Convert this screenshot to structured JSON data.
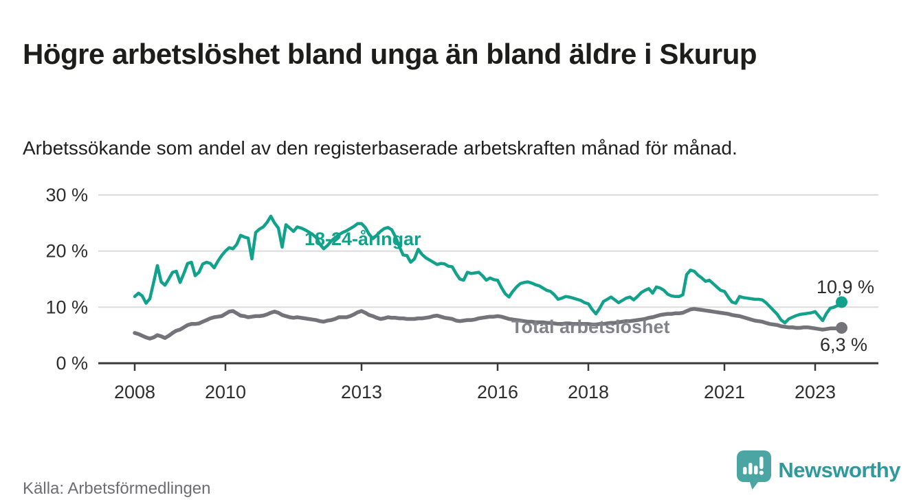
{
  "header": {
    "title": "Högre arbetslöshet bland unga än bland äldre i Skurup",
    "subtitle": "Arbetssökande som andel av den registerbaserade arbetskraften månad för månad."
  },
  "footer": {
    "source": "Källa: Arbetsförmedlingen",
    "brand": "Newsworthy"
  },
  "colors": {
    "youth": "#12A28B",
    "youth_label": "#12A28B",
    "total": "#74737A",
    "total_label": "#82828A",
    "axis": "#38383a",
    "gridline": "#dbdbdb",
    "logo": "#4BA5A3"
  },
  "chart_data": {
    "type": "line",
    "title": "Högre arbetslöshet bland unga än bland äldre i Skurup",
    "subtitle": "Arbetssökande som andel av den registerbaserade arbetskraften månad för månad.",
    "unit": "%",
    "x_start_year": 2008,
    "x_start_month": 1,
    "x_step_months": 1,
    "x_ticks": [
      2008,
      2010,
      2013,
      2016,
      2018,
      2021,
      2023
    ],
    "y_ticks": [
      {
        "value": 0,
        "label": "0 %"
      },
      {
        "value": 10,
        "label": "10 %"
      },
      {
        "value": 20,
        "label": "20 %"
      },
      {
        "value": 30,
        "label": "30 %"
      }
    ],
    "ylim": [
      0,
      30
    ],
    "grid": "horizontal",
    "legend_position": "inline-labels",
    "series": [
      {
        "name": "18-24-åringar",
        "color": "#12A28B",
        "end_label": "10,9 %",
        "end_value": 10.9,
        "values": [
          11.9,
          12.5,
          12.0,
          10.7,
          11.5,
          14.4,
          17.4,
          14.5,
          13.9,
          15.0,
          16.2,
          16.4,
          14.4,
          16.0,
          17.8,
          18.0,
          15.6,
          16.2,
          17.7,
          18.0,
          17.8,
          17.0,
          18.2,
          19.2,
          20.0,
          20.6,
          20.4,
          21.2,
          22.8,
          22.5,
          22.3,
          18.6,
          23.3,
          23.9,
          24.3,
          25.1,
          26.2,
          25.0,
          24.1,
          20.7,
          24.7,
          24.1,
          23.5,
          24.3,
          24.1,
          23.8,
          23.4,
          23.0,
          22.4,
          21.2,
          20.4,
          21.0,
          21.8,
          22.4,
          22.9,
          23.3,
          23.6,
          24.0,
          24.4,
          24.9,
          24.9,
          24.2,
          23.0,
          22.2,
          22.8,
          23.5,
          24.0,
          24.2,
          23.8,
          22.5,
          20.8,
          19.3,
          19.2,
          18.0,
          18.6,
          20.3,
          19.4,
          18.8,
          18.4,
          18.0,
          17.6,
          17.8,
          17.7,
          17.3,
          17.2,
          16.0,
          15.0,
          14.8,
          16.2,
          16.0,
          16.1,
          16.2,
          15.6,
          14.8,
          15.2,
          14.9,
          14.8,
          13.5,
          12.4,
          11.8,
          12.8,
          13.6,
          14.2,
          14.4,
          14.5,
          14.3,
          14.0,
          13.8,
          13.4,
          13.0,
          12.8,
          12.2,
          11.4,
          11.6,
          11.9,
          11.8,
          11.6,
          11.4,
          11.2,
          10.8,
          10.6,
          9.6,
          8.8,
          9.8,
          11.0,
          11.4,
          11.8,
          11.3,
          10.8,
          11.2,
          11.6,
          11.8,
          11.3,
          11.9,
          12.6,
          13.0,
          13.3,
          12.5,
          13.6,
          13.4,
          13.0,
          12.3,
          12.0,
          11.9,
          11.9,
          12.2,
          15.8,
          16.6,
          16.4,
          15.7,
          15.2,
          14.6,
          14.8,
          14.2,
          13.6,
          13.0,
          12.8,
          11.8,
          10.9,
          10.7,
          11.9,
          11.7,
          11.6,
          11.5,
          11.4,
          11.4,
          11.3,
          10.8,
          10.1,
          9.4,
          8.7,
          7.7,
          7.2,
          7.9,
          8.2,
          8.5,
          8.7,
          8.8,
          8.9,
          9.0,
          9.2,
          8.4,
          7.6,
          8.9,
          9.8,
          10.0,
          10.3,
          10.9
        ]
      },
      {
        "name": "Total arbetslöshet",
        "color": "#74737A",
        "end_label": "6,3 %",
        "end_value": 6.3,
        "values": [
          5.4,
          5.2,
          4.9,
          4.6,
          4.4,
          4.6,
          5.0,
          4.8,
          4.5,
          4.9,
          5.4,
          5.8,
          6.0,
          6.4,
          6.8,
          7.0,
          7.0,
          7.1,
          7.4,
          7.7,
          8.0,
          8.2,
          8.3,
          8.4,
          8.8,
          9.2,
          9.3,
          8.9,
          8.5,
          8.4,
          8.2,
          8.3,
          8.4,
          8.4,
          8.5,
          8.7,
          9.0,
          9.2,
          9.0,
          8.6,
          8.4,
          8.2,
          8.1,
          8.2,
          8.1,
          8.0,
          7.9,
          7.8,
          7.7,
          7.5,
          7.4,
          7.6,
          7.7,
          7.9,
          8.2,
          8.2,
          8.2,
          8.4,
          8.7,
          9.1,
          9.3,
          9.0,
          8.6,
          8.4,
          8.1,
          7.9,
          8.0,
          8.2,
          8.1,
          8.1,
          8.0,
          8.0,
          7.9,
          7.9,
          7.9,
          8.0,
          8.0,
          8.1,
          8.2,
          8.4,
          8.5,
          8.3,
          8.1,
          8.0,
          7.9,
          7.6,
          7.5,
          7.6,
          7.7,
          7.7,
          7.8,
          8.0,
          8.1,
          8.2,
          8.3,
          8.3,
          8.4,
          8.3,
          8.1,
          7.9,
          7.8,
          7.7,
          7.6,
          7.5,
          7.4,
          7.4,
          7.3,
          7.3,
          7.3,
          7.2,
          7.2,
          7.1,
          7.0,
          7.0,
          7.1,
          7.1,
          7.0,
          7.0,
          7.0,
          7.0,
          7.0,
          6.9,
          6.9,
          7.0,
          7.0,
          7.1,
          7.2,
          7.2,
          7.3,
          7.4,
          7.5,
          7.5,
          7.6,
          7.7,
          7.8,
          7.9,
          8.1,
          8.2,
          8.4,
          8.6,
          8.7,
          8.8,
          8.8,
          8.9,
          8.9,
          9.0,
          9.3,
          9.6,
          9.7,
          9.6,
          9.5,
          9.4,
          9.3,
          9.2,
          9.1,
          9.0,
          8.9,
          8.8,
          8.6,
          8.5,
          8.4,
          8.2,
          8.0,
          7.8,
          7.6,
          7.5,
          7.4,
          7.2,
          7.0,
          6.9,
          6.8,
          6.6,
          6.5,
          6.4,
          6.4,
          6.3,
          6.3,
          6.4,
          6.4,
          6.3,
          6.2,
          6.1,
          6.0,
          6.1,
          6.2,
          6.2,
          6.2,
          6.3
        ]
      }
    ]
  }
}
